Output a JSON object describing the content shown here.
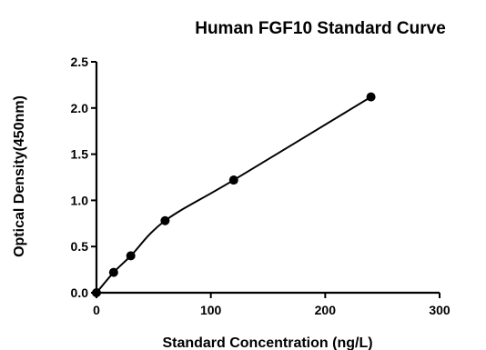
{
  "chart_data": {
    "type": "scatter",
    "title": "Human FGF10 Standard Curve",
    "xlabel": "Standard Concentration (ng/L)",
    "ylabel": "Optical Density(450nm)",
    "xlim": [
      0,
      300
    ],
    "ylim": [
      0,
      2.5
    ],
    "x_ticks": [
      "0",
      "100",
      "200",
      "300"
    ],
    "y_ticks": [
      "0.0",
      "0.5",
      "1.0",
      "1.5",
      "2.0",
      "2.5"
    ],
    "grid": false,
    "legend": "none",
    "marker_color": "#000000",
    "series": [
      {
        "x": [
          0,
          15,
          30,
          60,
          120,
          240
        ],
        "y": [
          0.0,
          0.22,
          0.4,
          0.78,
          1.22,
          2.12
        ],
        "fit_curve": true
      }
    ]
  }
}
